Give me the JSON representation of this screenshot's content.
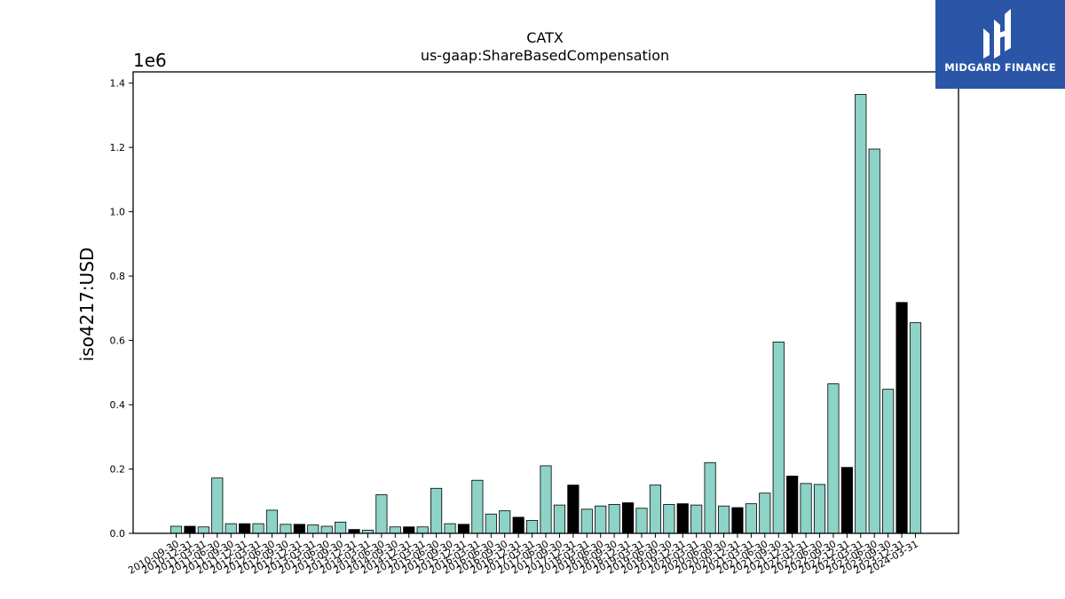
{
  "chart_data": {
    "type": "bar",
    "title": "CATX",
    "subtitle": "us-gaap:ShareBasedCompensation",
    "ylabel": "iso4217:USD",
    "y_scale_label": "1e6",
    "ylim": [
      0,
      1435000
    ],
    "yticks": [
      0,
      200000,
      400000,
      600000,
      800000,
      1000000,
      1200000,
      1400000
    ],
    "ytick_labels": [
      "0.0",
      "0.2",
      "0.4",
      "0.6",
      "0.8",
      "1.0",
      "1.2",
      "1.4"
    ],
    "colors": {
      "teal": "#8dd3c7",
      "black": "#000000"
    },
    "categories": [
      "2010-09-30",
      "2010-12-31",
      "2011-03-31",
      "2011-06-30",
      "2011-09-30",
      "2011-12-31",
      "2012-03-31",
      "2012-06-30",
      "2012-09-30",
      "2012-12-31",
      "2013-03-31",
      "2013-06-30",
      "2013-09-30",
      "2013-12-31",
      "2014-03-31",
      "2014-06-30",
      "2014-09-30",
      "2014-12-31",
      "2015-03-31",
      "2015-06-30",
      "2015-09-30",
      "2015-12-31",
      "2016-03-31",
      "2016-06-30",
      "2016-09-30",
      "2016-12-31",
      "2017-03-31",
      "2017-06-30",
      "2017-09-30",
      "2017-12-31",
      "2018-03-31",
      "2018-06-30",
      "2018-09-30",
      "2018-12-31",
      "2019-03-31",
      "2019-06-30",
      "2019-09-30",
      "2019-12-31",
      "2020-03-31",
      "2020-06-30",
      "2020-09-30",
      "2020-12-31",
      "2021-03-31",
      "2021-06-30",
      "2021-09-30",
      "2021-12-31",
      "2022-03-31",
      "2022-06-30",
      "2022-09-30",
      "2022-12-31",
      "2023-03-31",
      "2023-06-30",
      "2023-09-30",
      "2023-12-31",
      "2024-03-31"
    ],
    "values": [
      22000,
      22000,
      20000,
      172000,
      30000,
      30000,
      30000,
      72000,
      28000,
      28000,
      26000,
      22000,
      35000,
      12000,
      10000,
      120000,
      20000,
      20000,
      20000,
      140000,
      30000,
      28000,
      165000,
      60000,
      70000,
      50000,
      40000,
      210000,
      88000,
      150000,
      75000,
      85000,
      90000,
      95000,
      78000,
      150000,
      90000,
      92000,
      88000,
      220000,
      85000,
      80000,
      92000,
      125000,
      595000,
      178000,
      155000,
      152000,
      465000,
      205000,
      1365000,
      1195000,
      448000,
      718000,
      655000
    ],
    "bar_colors": [
      "teal",
      "black",
      "teal",
      "teal",
      "teal",
      "black",
      "teal",
      "teal",
      "teal",
      "black",
      "teal",
      "teal",
      "teal",
      "black",
      "teal",
      "teal",
      "teal",
      "black",
      "teal",
      "teal",
      "teal",
      "black",
      "teal",
      "teal",
      "teal",
      "black",
      "teal",
      "teal",
      "teal",
      "black",
      "teal",
      "teal",
      "teal",
      "black",
      "teal",
      "teal",
      "teal",
      "black",
      "teal",
      "teal",
      "teal",
      "black",
      "teal",
      "teal",
      "teal",
      "black",
      "teal",
      "teal",
      "teal",
      "black",
      "teal",
      "teal",
      "teal",
      "black",
      "teal"
    ]
  },
  "logo": {
    "text": "MIDGARD FINANCE",
    "background": "#2b55a6"
  }
}
